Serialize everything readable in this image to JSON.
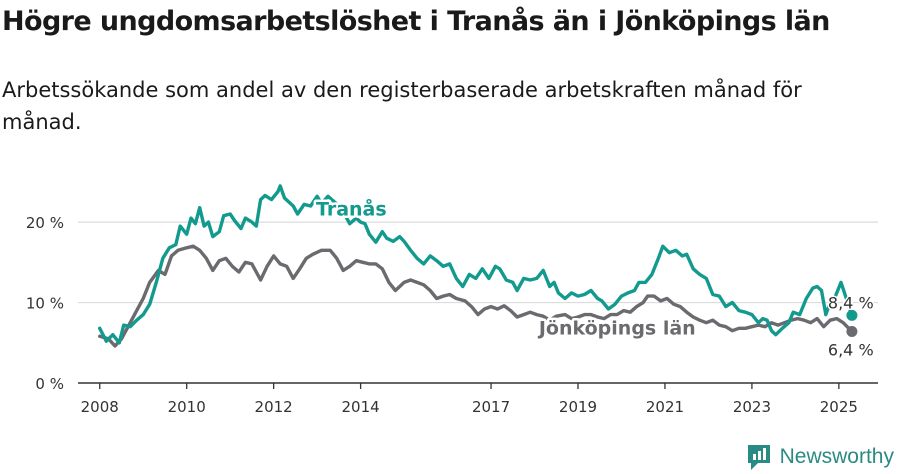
{
  "title": "Högre ungdomsarbetslöshet i Tranås än i Jönköpings län",
  "subtitle": "Arbetssökande som andel av den registerbaserade arbetskraften månad för månad.",
  "brand": {
    "name": "Newsworthy"
  },
  "colors": {
    "tranas": "#129a8e",
    "jonkoping": "#6a6a6f",
    "grid": "#dcdcdc",
    "axis": "#333333"
  },
  "chart_data": {
    "type": "line",
    "xlim": [
      2007.5,
      2025.9
    ],
    "ylim": [
      0,
      22
    ],
    "x_ticks": [
      {
        "value": 2008,
        "label": "2008"
      },
      {
        "value": 2010,
        "label": "2010"
      },
      {
        "value": 2012,
        "label": "2012"
      },
      {
        "value": 2014,
        "label": "2014"
      },
      {
        "value": 2017,
        "label": "2017"
      },
      {
        "value": 2019,
        "label": "2019"
      },
      {
        "value": 2021,
        "label": "2021"
      },
      {
        "value": 2023,
        "label": "2023"
      },
      {
        "value": 2025,
        "label": "2025"
      }
    ],
    "y_ticks": [
      {
        "value": 0,
        "label": "0 %"
      },
      {
        "value": 10,
        "label": "10 %"
      },
      {
        "value": 20,
        "label": "20 %"
      }
    ],
    "series": [
      {
        "name": "Tranås",
        "end_label": "8,4 %",
        "points": [
          [
            2008.0,
            6.8
          ],
          [
            2008.15,
            5.2
          ],
          [
            2008.3,
            6.0
          ],
          [
            2008.45,
            5.0
          ],
          [
            2008.55,
            7.2
          ],
          [
            2008.7,
            7.0
          ],
          [
            2008.85,
            7.8
          ],
          [
            2009.0,
            8.5
          ],
          [
            2009.15,
            9.8
          ],
          [
            2009.3,
            12.5
          ],
          [
            2009.45,
            15.5
          ],
          [
            2009.6,
            16.8
          ],
          [
            2009.75,
            17.2
          ],
          [
            2009.85,
            19.5
          ],
          [
            2010.0,
            18.5
          ],
          [
            2010.1,
            20.5
          ],
          [
            2010.2,
            19.8
          ],
          [
            2010.3,
            21.8
          ],
          [
            2010.4,
            19.5
          ],
          [
            2010.5,
            20.0
          ],
          [
            2010.6,
            18.2
          ],
          [
            2010.75,
            18.8
          ],
          [
            2010.85,
            20.8
          ],
          [
            2011.0,
            21.0
          ],
          [
            2011.1,
            20.2
          ],
          [
            2011.25,
            19.2
          ],
          [
            2011.35,
            20.5
          ],
          [
            2011.5,
            20.0
          ],
          [
            2011.6,
            19.5
          ],
          [
            2011.7,
            22.8
          ],
          [
            2011.8,
            23.3
          ],
          [
            2011.95,
            22.8
          ],
          [
            2012.1,
            23.8
          ],
          [
            2012.15,
            24.5
          ],
          [
            2012.25,
            23.0
          ],
          [
            2012.45,
            22.0
          ],
          [
            2012.55,
            21.0
          ],
          [
            2012.7,
            22.2
          ],
          [
            2012.85,
            22.0
          ],
          [
            2013.0,
            23.2
          ],
          [
            2013.1,
            22.3
          ],
          [
            2013.25,
            23.2
          ],
          [
            2013.4,
            22.5
          ],
          [
            2013.55,
            21.8
          ],
          [
            2013.65,
            20.8
          ],
          [
            2013.75,
            19.8
          ],
          [
            2013.9,
            20.5
          ],
          [
            2014.0,
            20.0
          ],
          [
            2014.1,
            19.8
          ],
          [
            2014.2,
            18.5
          ],
          [
            2014.35,
            17.5
          ],
          [
            2014.5,
            18.8
          ],
          [
            2014.6,
            18.0
          ],
          [
            2014.75,
            17.6
          ],
          [
            2014.9,
            18.2
          ],
          [
            2015.0,
            17.6
          ],
          [
            2015.15,
            16.5
          ],
          [
            2015.3,
            15.5
          ],
          [
            2015.45,
            14.8
          ],
          [
            2015.6,
            15.8
          ],
          [
            2015.75,
            15.2
          ],
          [
            2015.9,
            14.5
          ],
          [
            2016.05,
            14.8
          ],
          [
            2016.2,
            13.0
          ],
          [
            2016.35,
            12.0
          ],
          [
            2016.5,
            13.5
          ],
          [
            2016.65,
            13.0
          ],
          [
            2016.8,
            14.2
          ],
          [
            2016.95,
            13.0
          ],
          [
            2017.1,
            14.5
          ],
          [
            2017.2,
            14.2
          ],
          [
            2017.35,
            12.8
          ],
          [
            2017.5,
            12.5
          ],
          [
            2017.6,
            11.5
          ],
          [
            2017.75,
            13.0
          ],
          [
            2017.9,
            12.8
          ],
          [
            2018.05,
            13.0
          ],
          [
            2018.2,
            14.0
          ],
          [
            2018.35,
            12.0
          ],
          [
            2018.45,
            12.5
          ],
          [
            2018.55,
            11.2
          ],
          [
            2018.7,
            10.5
          ],
          [
            2018.85,
            11.2
          ],
          [
            2019.0,
            10.8
          ],
          [
            2019.15,
            11.0
          ],
          [
            2019.3,
            11.5
          ],
          [
            2019.45,
            10.5
          ],
          [
            2019.55,
            10.2
          ],
          [
            2019.7,
            9.2
          ],
          [
            2019.85,
            9.8
          ],
          [
            2020.0,
            10.8
          ],
          [
            2020.15,
            11.2
          ],
          [
            2020.3,
            11.5
          ],
          [
            2020.4,
            12.5
          ],
          [
            2020.55,
            12.5
          ],
          [
            2020.7,
            13.5
          ],
          [
            2020.85,
            15.5
          ],
          [
            2020.95,
            17.0
          ],
          [
            2021.1,
            16.2
          ],
          [
            2021.25,
            16.5
          ],
          [
            2021.4,
            15.8
          ],
          [
            2021.5,
            16.0
          ],
          [
            2021.65,
            14.2
          ],
          [
            2021.8,
            13.5
          ],
          [
            2021.95,
            13.0
          ],
          [
            2022.1,
            11.0
          ],
          [
            2022.25,
            10.8
          ],
          [
            2022.4,
            9.5
          ],
          [
            2022.55,
            10.0
          ],
          [
            2022.7,
            9.0
          ],
          [
            2022.85,
            8.8
          ],
          [
            2023.0,
            8.5
          ],
          [
            2023.15,
            7.5
          ],
          [
            2023.25,
            8.0
          ],
          [
            2023.35,
            7.8
          ],
          [
            2023.45,
            6.5
          ],
          [
            2023.55,
            6.0
          ],
          [
            2023.7,
            6.8
          ],
          [
            2023.85,
            7.5
          ],
          [
            2023.95,
            8.8
          ],
          [
            2024.1,
            8.5
          ],
          [
            2024.25,
            10.5
          ],
          [
            2024.4,
            11.8
          ],
          [
            2024.5,
            12.0
          ],
          [
            2024.6,
            11.5
          ],
          [
            2024.7,
            8.5
          ],
          [
            2024.8,
            10.0
          ],
          [
            2024.9,
            10.5
          ],
          [
            2025.05,
            12.5
          ],
          [
            2025.3,
            8.4
          ]
        ]
      },
      {
        "name": "Jönköpings län",
        "end_label": "6,4 %",
        "points": [
          [
            2008.0,
            5.8
          ],
          [
            2008.2,
            5.5
          ],
          [
            2008.35,
            4.6
          ],
          [
            2008.5,
            5.5
          ],
          [
            2008.7,
            7.5
          ],
          [
            2008.85,
            9.0
          ],
          [
            2009.0,
            10.5
          ],
          [
            2009.15,
            12.5
          ],
          [
            2009.35,
            14.0
          ],
          [
            2009.5,
            13.5
          ],
          [
            2009.65,
            15.8
          ],
          [
            2009.8,
            16.5
          ],
          [
            2010.0,
            16.8
          ],
          [
            2010.15,
            17.0
          ],
          [
            2010.3,
            16.5
          ],
          [
            2010.45,
            15.5
          ],
          [
            2010.6,
            14.0
          ],
          [
            2010.75,
            15.2
          ],
          [
            2010.9,
            15.5
          ],
          [
            2011.05,
            14.5
          ],
          [
            2011.2,
            13.8
          ],
          [
            2011.35,
            15.0
          ],
          [
            2011.5,
            14.8
          ],
          [
            2011.7,
            12.8
          ],
          [
            2011.85,
            14.5
          ],
          [
            2012.0,
            15.8
          ],
          [
            2012.15,
            14.8
          ],
          [
            2012.3,
            14.5
          ],
          [
            2012.45,
            13.0
          ],
          [
            2012.6,
            14.2
          ],
          [
            2012.75,
            15.5
          ],
          [
            2012.9,
            16.0
          ],
          [
            2013.1,
            16.5
          ],
          [
            2013.3,
            16.5
          ],
          [
            2013.45,
            15.5
          ],
          [
            2013.6,
            14.0
          ],
          [
            2013.75,
            14.5
          ],
          [
            2013.9,
            15.2
          ],
          [
            2014.05,
            15.0
          ],
          [
            2014.2,
            14.8
          ],
          [
            2014.35,
            14.8
          ],
          [
            2014.5,
            14.2
          ],
          [
            2014.65,
            12.5
          ],
          [
            2014.8,
            11.5
          ],
          [
            2015.0,
            12.5
          ],
          [
            2015.15,
            12.8
          ],
          [
            2015.3,
            12.5
          ],
          [
            2015.45,
            12.2
          ],
          [
            2015.6,
            11.5
          ],
          [
            2015.75,
            10.5
          ],
          [
            2015.9,
            10.8
          ],
          [
            2016.05,
            11.0
          ],
          [
            2016.2,
            10.5
          ],
          [
            2016.4,
            10.2
          ],
          [
            2016.55,
            9.5
          ],
          [
            2016.7,
            8.5
          ],
          [
            2016.85,
            9.2
          ],
          [
            2017.0,
            9.5
          ],
          [
            2017.15,
            9.2
          ],
          [
            2017.3,
            9.6
          ],
          [
            2017.45,
            9.0
          ],
          [
            2017.6,
            8.2
          ],
          [
            2017.75,
            8.5
          ],
          [
            2017.9,
            8.8
          ],
          [
            2018.05,
            8.5
          ],
          [
            2018.2,
            8.3
          ],
          [
            2018.35,
            7.8
          ],
          [
            2018.5,
            8.3
          ],
          [
            2018.7,
            8.5
          ],
          [
            2018.85,
            8.0
          ],
          [
            2019.0,
            8.2
          ],
          [
            2019.15,
            8.5
          ],
          [
            2019.3,
            8.5
          ],
          [
            2019.45,
            8.2
          ],
          [
            2019.6,
            8.0
          ],
          [
            2019.75,
            8.5
          ],
          [
            2019.9,
            8.5
          ],
          [
            2020.05,
            9.0
          ],
          [
            2020.2,
            8.8
          ],
          [
            2020.35,
            9.5
          ],
          [
            2020.5,
            10.0
          ],
          [
            2020.6,
            10.8
          ],
          [
            2020.75,
            10.8
          ],
          [
            2020.9,
            10.2
          ],
          [
            2021.05,
            10.5
          ],
          [
            2021.2,
            9.8
          ],
          [
            2021.35,
            9.5
          ],
          [
            2021.5,
            8.8
          ],
          [
            2021.65,
            8.2
          ],
          [
            2021.8,
            7.8
          ],
          [
            2021.95,
            7.5
          ],
          [
            2022.1,
            7.8
          ],
          [
            2022.25,
            7.2
          ],
          [
            2022.4,
            7.0
          ],
          [
            2022.55,
            6.5
          ],
          [
            2022.7,
            6.8
          ],
          [
            2022.85,
            6.8
          ],
          [
            2023.0,
            7.0
          ],
          [
            2023.15,
            7.2
          ],
          [
            2023.3,
            7.0
          ],
          [
            2023.45,
            7.5
          ],
          [
            2023.6,
            7.2
          ],
          [
            2023.75,
            7.5
          ],
          [
            2023.9,
            7.8
          ],
          [
            2024.05,
            8.0
          ],
          [
            2024.2,
            7.8
          ],
          [
            2024.35,
            7.5
          ],
          [
            2024.5,
            8.0
          ],
          [
            2024.65,
            7.0
          ],
          [
            2024.8,
            7.8
          ],
          [
            2024.95,
            8.0
          ],
          [
            2025.1,
            7.5
          ],
          [
            2025.3,
            6.4
          ]
        ]
      }
    ]
  }
}
